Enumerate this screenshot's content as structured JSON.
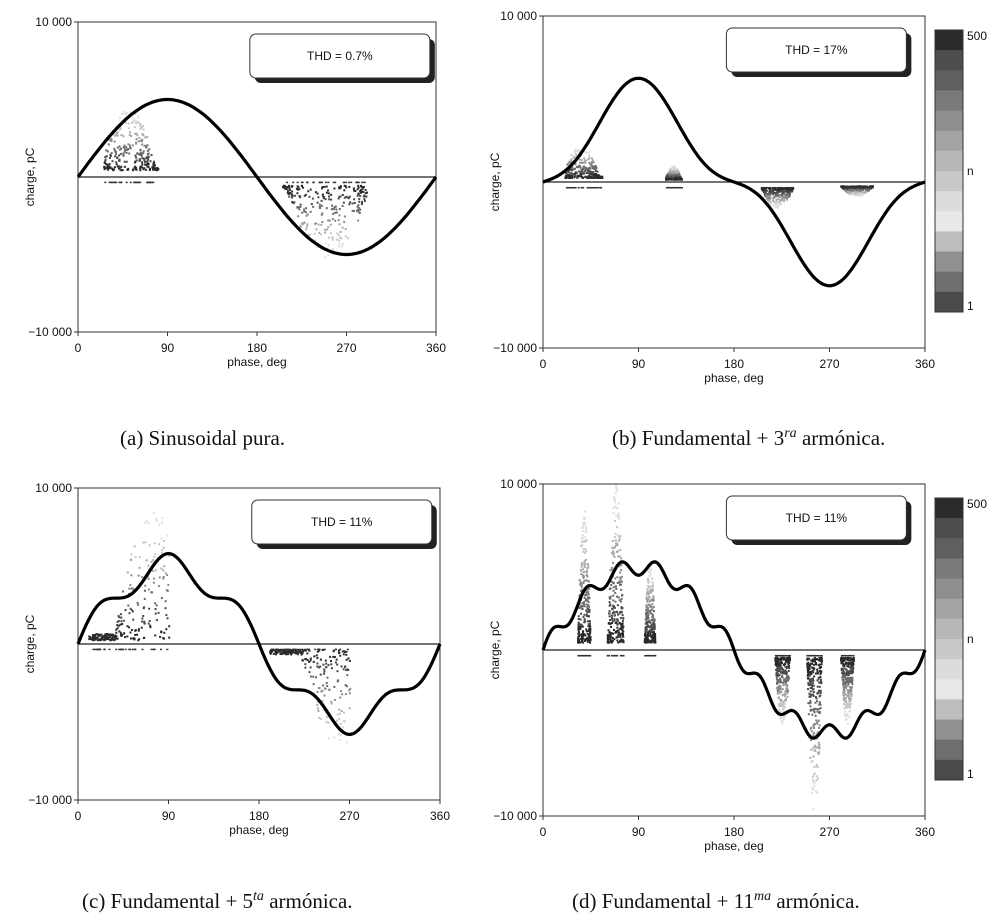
{
  "chart_data": [
    {
      "id": "a",
      "type": "scatter",
      "thd_label": "THD = 0.7%",
      "xlabel": "phase, deg",
      "ylabel": "charge, pC",
      "xlim": [
        0,
        360
      ],
      "ylim": [
        -10000,
        10000
      ],
      "x_ticks": [
        "0",
        "90",
        "180",
        "270",
        "360"
      ],
      "y_ticks": [
        "10 000",
        "−10 000"
      ],
      "voltage_waveform": {
        "harmonic_order": 1,
        "harmonic_amplitude": 0.0
      },
      "pd_clusters": [
        {
          "phase_from": 25,
          "phase_to": 80,
          "charge_from": 500,
          "charge_to": 4500,
          "peak_phase": 50
        },
        {
          "phase_from": 205,
          "phase_to": 290,
          "charge_from": -500,
          "charge_to": -5200,
          "peak_phase": 250
        }
      ],
      "has_colorbar": false,
      "caption": {
        "label": "(a)  Sinusoidal pura.",
        "sup": ""
      }
    },
    {
      "id": "b",
      "type": "scatter",
      "thd_label": "THD = 17%",
      "xlabel": "phase, deg",
      "ylabel": "charge, pC",
      "xlim": [
        0,
        360
      ],
      "ylim": [
        -10000,
        10000
      ],
      "x_ticks": [
        "0",
        "90",
        "180",
        "270",
        "360"
      ],
      "y_ticks": [
        "10 000",
        "−10 000"
      ],
      "voltage_waveform": {
        "harmonic_order": 3,
        "harmonic_amplitude": -0.25
      },
      "pd_clusters": [
        {
          "phase_from": 20,
          "phase_to": 55,
          "charge_from": 300,
          "charge_to": 2200,
          "peak_phase": 35
        },
        {
          "phase_from": 115,
          "phase_to": 130,
          "charge_from": 200,
          "charge_to": 1000,
          "peak_phase": 122
        },
        {
          "phase_from": 205,
          "phase_to": 235,
          "charge_from": -300,
          "charge_to": -1500,
          "peak_phase": 220
        },
        {
          "phase_from": 280,
          "phase_to": 310,
          "charge_from": -200,
          "charge_to": -800,
          "peak_phase": 295
        }
      ],
      "has_colorbar": true,
      "colorbar_labels": {
        "top": "500",
        "middle": "n",
        "bottom": "1"
      },
      "caption": {
        "label": "(b)  Fundamental + 3",
        "sup": "ra",
        "suffix": " armónica."
      }
    },
    {
      "id": "c",
      "type": "scatter",
      "thd_label": "THD = 11%",
      "xlabel": "phase, deg",
      "ylabel": "charge, pC",
      "xlim": [
        0,
        360
      ],
      "ylim": [
        -10000,
        10000
      ],
      "x_ticks": [
        "0",
        "90",
        "180",
        "270",
        "360"
      ],
      "y_ticks": [
        "10 000",
        "−10 000"
      ],
      "voltage_waveform": {
        "harmonic_order": 5,
        "harmonic_amplitude": 0.16
      },
      "pd_clusters": [
        {
          "phase_from": 10,
          "phase_to": 90,
          "charge_from": 300,
          "charge_to": 8500,
          "peak_phase": 75
        },
        {
          "phase_from": 190,
          "phase_to": 270,
          "charge_from": -300,
          "charge_to": -6500,
          "peak_phase": 260
        }
      ],
      "has_colorbar": false,
      "caption": {
        "label": "(c)  Fundamental + 5",
        "sup": "ta",
        "suffix": " armónica."
      }
    },
    {
      "id": "d",
      "type": "scatter",
      "thd_label": "THD = 11%",
      "xlabel": "phase, deg",
      "ylabel": "charge, pC",
      "xlim": [
        0,
        360
      ],
      "ylim": [
        -10000,
        10000
      ],
      "x_ticks": [
        "0",
        "90",
        "180",
        "270",
        "360"
      ],
      "y_ticks": [
        "10 000",
        "−10 000"
      ],
      "voltage_waveform": {
        "harmonic_order": 11,
        "harmonic_amplitude": 0.1
      },
      "pd_clusters": [
        {
          "phase_from": 32,
          "phase_to": 44,
          "charge_from": 500,
          "charge_to": 8500,
          "peak_phase": 38
        },
        {
          "phase_from": 60,
          "phase_to": 75,
          "charge_from": 500,
          "charge_to": 10000,
          "peak_phase": 68
        },
        {
          "phase_from": 95,
          "phase_to": 105,
          "charge_from": 500,
          "charge_to": 5500,
          "peak_phase": 100
        },
        {
          "phase_from": 218,
          "phase_to": 232,
          "charge_from": -400,
          "charge_to": -4500,
          "peak_phase": 225
        },
        {
          "phase_from": 248,
          "phase_to": 262,
          "charge_from": -400,
          "charge_to": -10000,
          "peak_phase": 255
        },
        {
          "phase_from": 280,
          "phase_to": 292,
          "charge_from": -400,
          "charge_to": -4500,
          "peak_phase": 286
        }
      ],
      "has_colorbar": true,
      "colorbar_labels": {
        "top": "500",
        "middle": "n",
        "bottom": "1"
      },
      "caption": {
        "label": "(d)  Fundamental + 11",
        "sup": "ma",
        "suffix": " armónica."
      }
    }
  ]
}
